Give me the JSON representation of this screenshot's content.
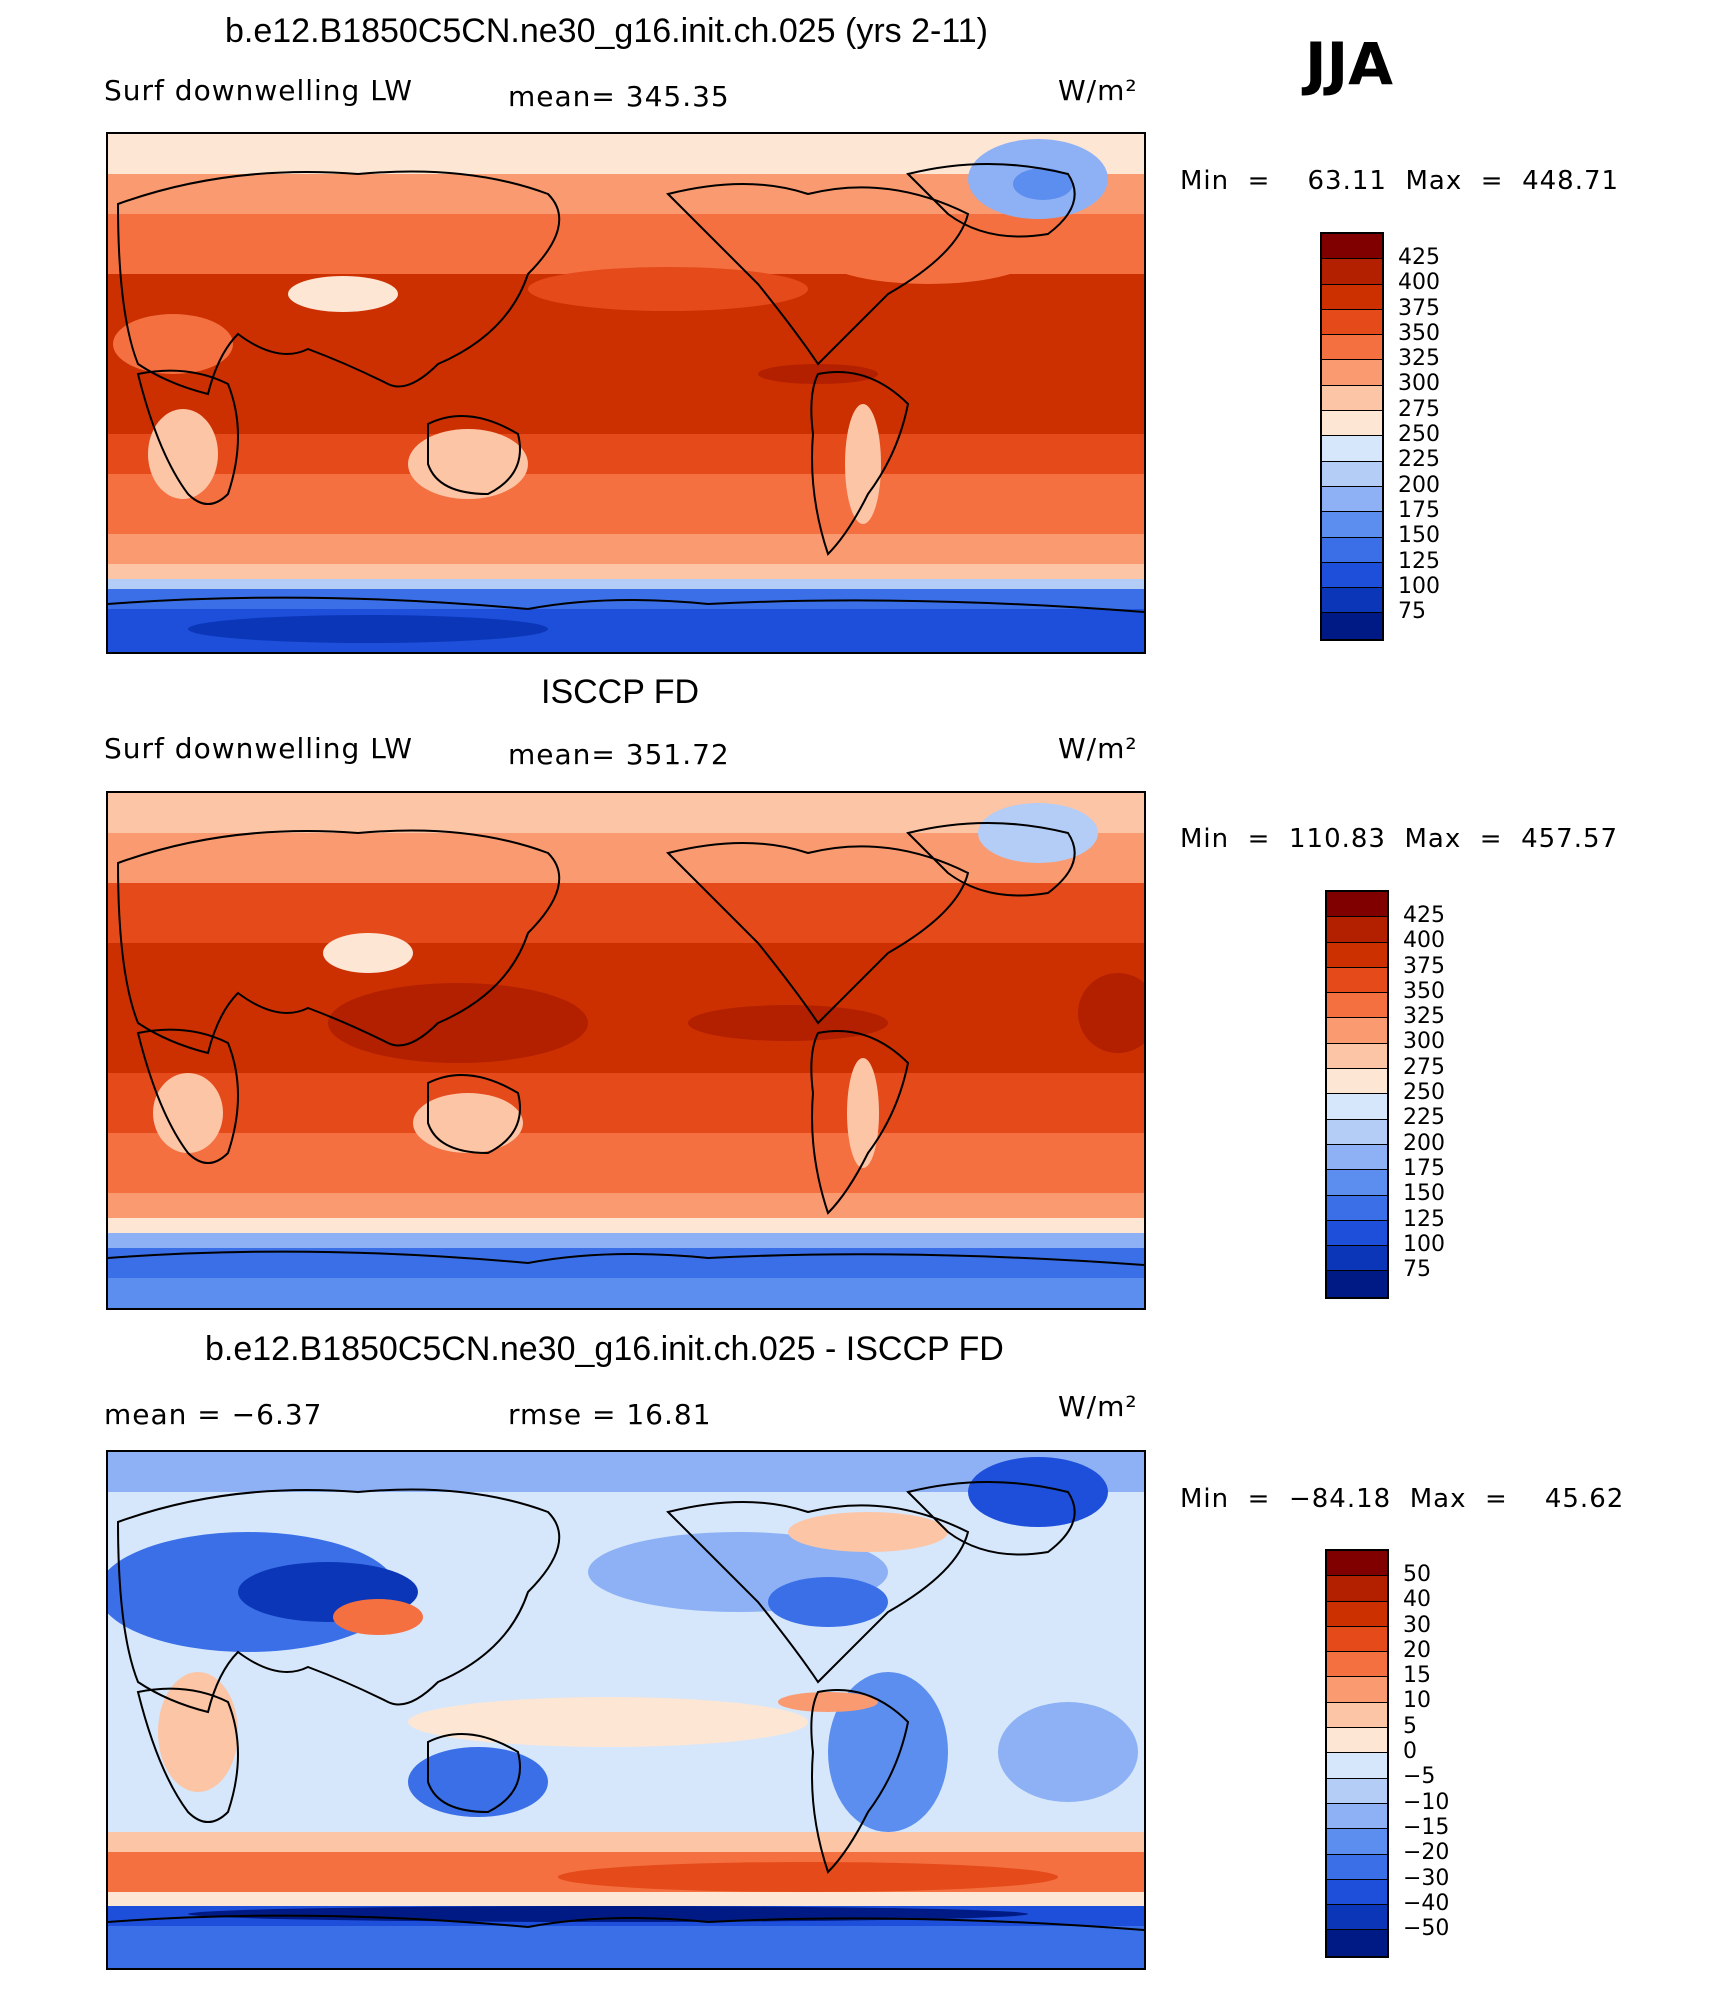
{
  "season": "JJA",
  "panels": [
    {
      "title": "b.e12.B1850C5CN.ne30_g16.init.ch.025 (yrs 2-11)",
      "left_label": "Surf  downwelling  LW",
      "mid_label": "mean=  345.35",
      "units": "W/m²",
      "minmax": "Min  =    63.11  Max  =  448.71",
      "colorbar": {
        "labels": [
          "425",
          "400",
          "375",
          "350",
          "325",
          "300",
          "275",
          "250",
          "225",
          "200",
          "175",
          "150",
          "125",
          "100",
          "75"
        ],
        "colors": [
          "#800000",
          "#b22000",
          "#cd3000",
          "#e44a1a",
          "#f47040",
          "#f99a70",
          "#fcc5a6",
          "#fde6d4",
          "#d6e7fb",
          "#b3cdf7",
          "#8db1f4",
          "#5c8ef0",
          "#3a6fe8",
          "#1d4fdb",
          "#0b36b8",
          "#001a85"
        ]
      }
    },
    {
      "title": "ISCCP FD",
      "left_label": "Surf  downwelling  LW",
      "mid_label": "mean=  351.72",
      "units": "W/m²",
      "minmax": "Min  =  110.83  Max  =  457.57",
      "colorbar": {
        "labels": [
          "425",
          "400",
          "375",
          "350",
          "325",
          "300",
          "275",
          "250",
          "225",
          "200",
          "175",
          "150",
          "125",
          "100",
          "75"
        ],
        "colors": [
          "#800000",
          "#b22000",
          "#cd3000",
          "#e44a1a",
          "#f47040",
          "#f99a70",
          "#fcc5a6",
          "#fde6d4",
          "#d6e7fb",
          "#b3cdf7",
          "#8db1f4",
          "#5c8ef0",
          "#3a6fe8",
          "#1d4fdb",
          "#0b36b8",
          "#001a85"
        ]
      }
    },
    {
      "title": "b.e12.B1850C5CN.ne30_g16.init.ch.025 - ISCCP FD",
      "left_label": "mean  =    −6.37",
      "mid_label": "rmse  =    16.81",
      "units": "W/m²",
      "minmax": "Min  =  −84.18  Max  =    45.62",
      "colorbar": {
        "labels": [
          "50",
          "40",
          "30",
          "20",
          "15",
          "10",
          "5",
          "0",
          "−5",
          "−10",
          "−15",
          "−20",
          "−30",
          "−40",
          "−50"
        ],
        "colors": [
          "#800000",
          "#b22000",
          "#cd3000",
          "#e44a1a",
          "#f47040",
          "#f99a70",
          "#fcc5a6",
          "#fde6d4",
          "#d6e7fb",
          "#b3cdf7",
          "#8db1f4",
          "#5c8ef0",
          "#3a6fe8",
          "#1d4fdb",
          "#0b36b8",
          "#001a85"
        ]
      }
    }
  ]
}
